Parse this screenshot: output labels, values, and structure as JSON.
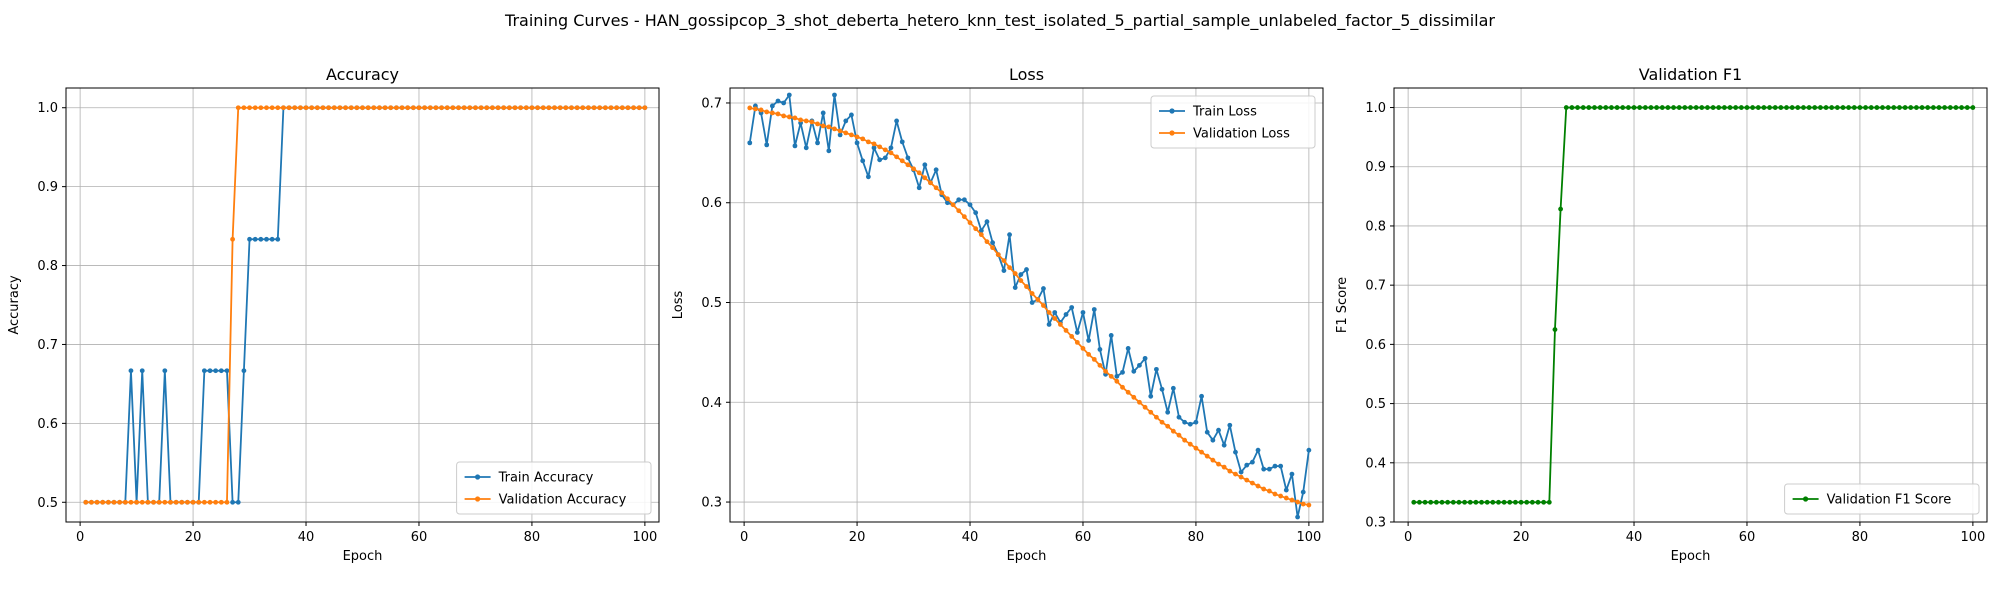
{
  "figure": {
    "suptitle": "Training Curves - HAN_gossipcop_3_shot_deberta_hetero_knn_test_isolated_5_partial_sample_unlabeled_factor_5_dissimilar"
  },
  "colors": {
    "blue": "#1f77b4",
    "orange": "#ff7f0e",
    "green": "#008000",
    "grid": "#b0b0b0"
  },
  "chart_data": [
    {
      "type": "line",
      "title": "Accuracy",
      "xlabel": "Epoch",
      "ylabel": "Accuracy",
      "xlim": [
        -2.5,
        102.5
      ],
      "ylim": [
        0.475,
        1.025
      ],
      "xticks": [
        0,
        20,
        40,
        60,
        80,
        100
      ],
      "yticks": [
        0.5,
        0.6,
        0.7,
        0.8,
        0.9,
        1.0
      ],
      "ytick_labels": [
        "0.5",
        "0.6",
        "0.7",
        "0.8",
        "0.9",
        "1.0"
      ],
      "grid": true,
      "legend_position": "lower right",
      "series": [
        {
          "name": "Train Accuracy",
          "color": "#1f77b4",
          "epochs": "1-100",
          "values": [
            0.5,
            0.5,
            0.5,
            0.5,
            0.5,
            0.5,
            0.5,
            0.5,
            0.6667,
            0.5,
            0.6667,
            0.5,
            0.5,
            0.5,
            0.6667,
            0.5,
            0.5,
            0.5,
            0.5,
            0.5,
            0.5,
            0.6667,
            0.6667,
            0.6667,
            0.6667,
            0.6667,
            0.5,
            0.5,
            0.6667,
            0.8333,
            0.8333,
            0.8333,
            0.8333,
            0.8333,
            0.8333,
            1.0,
            1.0,
            1.0,
            1.0,
            1.0,
            1.0,
            1.0,
            1.0,
            1.0,
            1.0,
            1.0,
            1.0,
            1.0,
            1.0,
            1.0,
            1.0,
            1.0,
            1.0,
            1.0,
            1.0,
            1.0,
            1.0,
            1.0,
            1.0,
            1.0,
            1.0,
            1.0,
            1.0,
            1.0,
            1.0,
            1.0,
            1.0,
            1.0,
            1.0,
            1.0,
            1.0,
            1.0,
            1.0,
            1.0,
            1.0,
            1.0,
            1.0,
            1.0,
            1.0,
            1.0,
            1.0,
            1.0,
            1.0,
            1.0,
            1.0,
            1.0,
            1.0,
            1.0,
            1.0,
            1.0,
            1.0,
            1.0,
            1.0,
            1.0,
            1.0,
            1.0,
            1.0,
            1.0,
            1.0,
            1.0
          ]
        },
        {
          "name": "Validation Accuracy",
          "color": "#ff7f0e",
          "epochs": "1-100",
          "values": [
            0.5,
            0.5,
            0.5,
            0.5,
            0.5,
            0.5,
            0.5,
            0.5,
            0.5,
            0.5,
            0.5,
            0.5,
            0.5,
            0.5,
            0.5,
            0.5,
            0.5,
            0.5,
            0.5,
            0.5,
            0.5,
            0.5,
            0.5,
            0.5,
            0.5,
            0.5,
            0.8333,
            1.0,
            1.0,
            1.0,
            1.0,
            1.0,
            1.0,
            1.0,
            1.0,
            1.0,
            1.0,
            1.0,
            1.0,
            1.0,
            1.0,
            1.0,
            1.0,
            1.0,
            1.0,
            1.0,
            1.0,
            1.0,
            1.0,
            1.0,
            1.0,
            1.0,
            1.0,
            1.0,
            1.0,
            1.0,
            1.0,
            1.0,
            1.0,
            1.0,
            1.0,
            1.0,
            1.0,
            1.0,
            1.0,
            1.0,
            1.0,
            1.0,
            1.0,
            1.0,
            1.0,
            1.0,
            1.0,
            1.0,
            1.0,
            1.0,
            1.0,
            1.0,
            1.0,
            1.0,
            1.0,
            1.0,
            1.0,
            1.0,
            1.0,
            1.0,
            1.0,
            1.0,
            1.0,
            1.0,
            1.0,
            1.0,
            1.0,
            1.0,
            1.0,
            1.0,
            1.0,
            1.0,
            1.0,
            1.0
          ]
        }
      ]
    },
    {
      "type": "line",
      "title": "Loss",
      "xlabel": "Epoch",
      "ylabel": "Loss",
      "xlim": [
        -2.5,
        102.5
      ],
      "ylim": [
        0.28,
        0.715
      ],
      "xticks": [
        0,
        20,
        40,
        60,
        80,
        100
      ],
      "yticks": [
        0.3,
        0.4,
        0.5,
        0.6,
        0.7
      ],
      "ytick_labels": [
        "0.3",
        "0.4",
        "0.5",
        "0.6",
        "0.7"
      ],
      "grid": true,
      "legend_position": "upper right",
      "series": [
        {
          "name": "Train Loss",
          "color": "#1f77b4",
          "epochs": "1-100",
          "values": [
            0.66,
            0.697,
            0.69,
            0.658,
            0.697,
            0.702,
            0.7,
            0.708,
            0.657,
            0.68,
            0.655,
            0.682,
            0.66,
            0.69,
            0.652,
            0.708,
            0.668,
            0.682,
            0.688,
            0.66,
            0.642,
            0.626,
            0.655,
            0.643,
            0.645,
            0.655,
            0.682,
            0.661,
            0.645,
            0.633,
            0.615,
            0.638,
            0.62,
            0.633,
            0.608,
            0.6,
            0.598,
            0.603,
            0.603,
            0.598,
            0.59,
            0.572,
            0.581,
            0.56,
            0.548,
            0.532,
            0.568,
            0.515,
            0.528,
            0.533,
            0.5,
            0.503,
            0.514,
            0.478,
            0.49,
            0.48,
            0.488,
            0.495,
            0.47,
            0.49,
            0.462,
            0.493,
            0.453,
            0.428,
            0.467,
            0.426,
            0.43,
            0.454,
            0.431,
            0.437,
            0.444,
            0.406,
            0.433,
            0.413,
            0.39,
            0.414,
            0.385,
            0.38,
            0.378,
            0.38,
            0.406,
            0.37,
            0.362,
            0.372,
            0.357,
            0.377,
            0.35,
            0.33,
            0.337,
            0.34,
            0.352,
            0.333,
            0.333,
            0.336,
            0.336,
            0.312,
            0.328,
            0.285,
            0.31,
            0.352
          ]
        },
        {
          "name": "Validation Loss",
          "color": "#ff7f0e",
          "epochs": "1-100",
          "values": [
            0.695,
            0.694,
            0.693,
            0.691,
            0.69,
            0.689,
            0.687,
            0.686,
            0.685,
            0.683,
            0.682,
            0.681,
            0.679,
            0.677,
            0.676,
            0.674,
            0.672,
            0.67,
            0.668,
            0.666,
            0.664,
            0.661,
            0.659,
            0.656,
            0.653,
            0.65,
            0.646,
            0.642,
            0.638,
            0.634,
            0.63,
            0.625,
            0.62,
            0.615,
            0.61,
            0.604,
            0.598,
            0.592,
            0.586,
            0.58,
            0.574,
            0.568,
            0.561,
            0.555,
            0.548,
            0.542,
            0.535,
            0.529,
            0.522,
            0.516,
            0.509,
            0.503,
            0.497,
            0.49,
            0.484,
            0.478,
            0.472,
            0.466,
            0.46,
            0.454,
            0.448,
            0.443,
            0.437,
            0.431,
            0.426,
            0.421,
            0.415,
            0.41,
            0.405,
            0.4,
            0.395,
            0.39,
            0.385,
            0.38,
            0.376,
            0.371,
            0.367,
            0.362,
            0.358,
            0.354,
            0.35,
            0.346,
            0.342,
            0.338,
            0.335,
            0.331,
            0.328,
            0.325,
            0.322,
            0.319,
            0.316,
            0.313,
            0.311,
            0.308,
            0.306,
            0.304,
            0.302,
            0.3,
            0.298,
            0.297
          ]
        }
      ]
    },
    {
      "type": "line",
      "title": "Validation F1",
      "xlabel": "Epoch",
      "ylabel": "F1 Score",
      "xlim": [
        -2.5,
        102.5
      ],
      "ylim": [
        0.3,
        1.033
      ],
      "xticks": [
        0,
        20,
        40,
        60,
        80,
        100
      ],
      "yticks": [
        0.3,
        0.4,
        0.5,
        0.6,
        0.7,
        0.8,
        0.9,
        1.0
      ],
      "ytick_labels": [
        "0.3",
        "0.4",
        "0.5",
        "0.6",
        "0.7",
        "0.8",
        "0.9",
        "1.0"
      ],
      "grid": true,
      "legend_position": "lower right",
      "series": [
        {
          "name": "Validation F1 Score",
          "color": "#008000",
          "epochs": "1-100",
          "values": [
            0.3333,
            0.3333,
            0.3333,
            0.3333,
            0.3333,
            0.3333,
            0.3333,
            0.3333,
            0.3333,
            0.3333,
            0.3333,
            0.3333,
            0.3333,
            0.3333,
            0.3333,
            0.3333,
            0.3333,
            0.3333,
            0.3333,
            0.3333,
            0.3333,
            0.3333,
            0.3333,
            0.3333,
            0.3333,
            0.625,
            0.8286,
            1.0,
            1.0,
            1.0,
            1.0,
            1.0,
            1.0,
            1.0,
            1.0,
            1.0,
            1.0,
            1.0,
            1.0,
            1.0,
            1.0,
            1.0,
            1.0,
            1.0,
            1.0,
            1.0,
            1.0,
            1.0,
            1.0,
            1.0,
            1.0,
            1.0,
            1.0,
            1.0,
            1.0,
            1.0,
            1.0,
            1.0,
            1.0,
            1.0,
            1.0,
            1.0,
            1.0,
            1.0,
            1.0,
            1.0,
            1.0,
            1.0,
            1.0,
            1.0,
            1.0,
            1.0,
            1.0,
            1.0,
            1.0,
            1.0,
            1.0,
            1.0,
            1.0,
            1.0,
            1.0,
            1.0,
            1.0,
            1.0,
            1.0,
            1.0,
            1.0,
            1.0,
            1.0,
            1.0,
            1.0,
            1.0,
            1.0,
            1.0,
            1.0,
            1.0,
            1.0,
            1.0,
            1.0,
            1.0
          ]
        }
      ]
    }
  ]
}
